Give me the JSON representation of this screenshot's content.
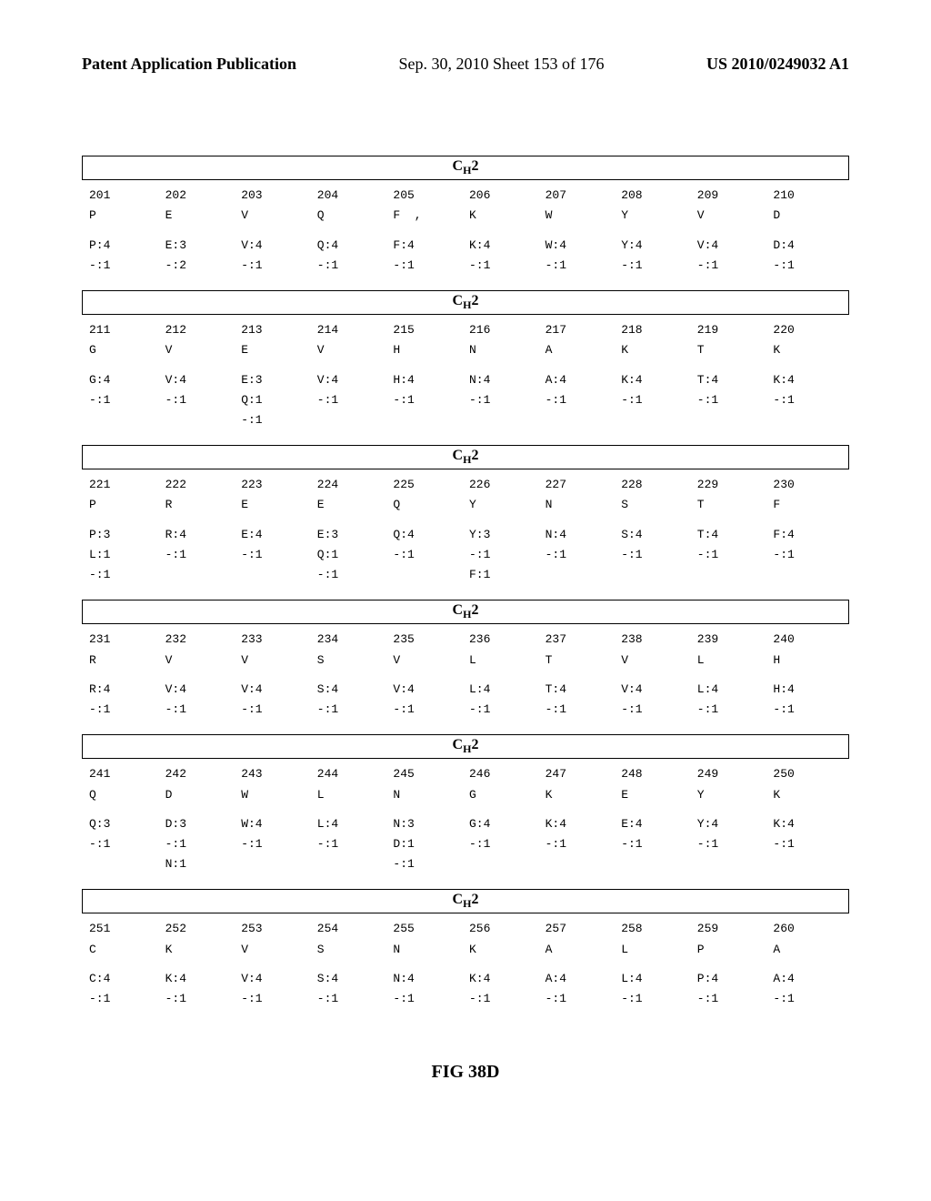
{
  "header": {
    "left": "Patent Application Publication",
    "center": "Sep. 30, 2010  Sheet 153 of 176",
    "right": "US 2010/0249032 A1"
  },
  "figure_label": "FIG 38D",
  "domain_title_html": "C",
  "domain_title_sub": "H",
  "domain_title_tail": "2",
  "blocks": [
    {
      "positions": [
        "201",
        "202",
        "203",
        "204",
        "205",
        "206",
        "207",
        "208",
        "209",
        "210"
      ],
      "residues": [
        "P",
        "E",
        "V",
        "Q",
        "F  ,",
        "K",
        "W",
        "Y",
        "V",
        "D"
      ],
      "counts": [
        [
          "P:4",
          "E:3",
          "V:4",
          "Q:4",
          "F:4",
          "K:4",
          "W:4",
          "Y:4",
          "V:4",
          "D:4"
        ],
        [
          "-:1",
          "-:2",
          "-:1",
          "-:1",
          "-:1",
          "-:1",
          "-:1",
          "-:1",
          "-:1",
          "-:1"
        ]
      ]
    },
    {
      "positions": [
        "211",
        "212",
        "213",
        "214",
        "215",
        "216",
        "217",
        "218",
        "219",
        "220"
      ],
      "residues": [
        "G",
        "V",
        "E",
        "V",
        "H",
        "N",
        "A",
        "K",
        "T",
        "K"
      ],
      "counts": [
        [
          "G:4",
          "V:4",
          "E:3",
          "V:4",
          "H:4",
          "N:4",
          "A:4",
          "K:4",
          "T:4",
          "K:4"
        ],
        [
          "-:1",
          "-:1",
          "Q:1",
          "-:1",
          "-:1",
          "-:1",
          "-:1",
          "-:1",
          "-:1",
          "-:1"
        ],
        [
          "",
          "",
          "-:1",
          "",
          "",
          "",
          "",
          "",
          "",
          ""
        ]
      ]
    },
    {
      "positions": [
        "221",
        "222",
        "223",
        "224",
        "225",
        "226",
        "227",
        "228",
        "229",
        "230"
      ],
      "residues": [
        "P",
        "R",
        "E",
        "E",
        "Q",
        "Y",
        "N",
        "S",
        "T",
        "F"
      ],
      "counts": [
        [
          "P:3",
          "R:4",
          "E:4",
          "E:3",
          "Q:4",
          "Y:3",
          "N:4",
          "S:4",
          "T:4",
          "F:4"
        ],
        [
          "L:1",
          "-:1",
          "-:1",
          "Q:1",
          "-:1",
          "-:1",
          "-:1",
          "-:1",
          "-:1",
          "-:1"
        ],
        [
          "-:1",
          "",
          "",
          "-:1",
          "",
          "F:1",
          "",
          "",
          "",
          ""
        ]
      ]
    },
    {
      "positions": [
        "231",
        "232",
        "233",
        "234",
        "235",
        "236",
        "237",
        "238",
        "239",
        "240"
      ],
      "residues": [
        "R",
        "V",
        "V",
        "S",
        "V",
        "L",
        "T",
        "V",
        "L",
        "H"
      ],
      "counts": [
        [
          "R:4",
          "V:4",
          "V:4",
          "S:4",
          "V:4",
          "L:4",
          "T:4",
          "V:4",
          "L:4",
          "H:4"
        ],
        [
          "-:1",
          "-:1",
          "-:1",
          "-:1",
          "-:1",
          "-:1",
          "-:1",
          "-:1",
          "-:1",
          "-:1"
        ]
      ]
    },
    {
      "positions": [
        "241",
        "242",
        "243",
        "244",
        "245",
        "246",
        "247",
        "248",
        "249",
        "250"
      ],
      "residues": [
        "Q",
        "D",
        "W",
        "L",
        "N",
        "G",
        "K",
        "E",
        "Y",
        "K"
      ],
      "counts": [
        [
          "Q:3",
          "D:3",
          "W:4",
          "L:4",
          "N:3",
          "G:4",
          "K:4",
          "E:4",
          "Y:4",
          "K:4"
        ],
        [
          "-:1",
          "-:1",
          "-:1",
          "-:1",
          "D:1",
          "-:1",
          "-:1",
          "-:1",
          "-:1",
          "-:1"
        ],
        [
          "",
          "N:1",
          "",
          "",
          "-:1",
          "",
          "",
          "",
          "",
          ""
        ]
      ]
    },
    {
      "positions": [
        "251",
        "252",
        "253",
        "254",
        "255",
        "256",
        "257",
        "258",
        "259",
        "260"
      ],
      "residues": [
        "C",
        "K",
        "V",
        "S",
        "N",
        "K",
        "A",
        "L",
        "P",
        "A"
      ],
      "counts": [
        [
          "C:4",
          "K:4",
          "V:4",
          "S:4",
          "N:4",
          "K:4",
          "A:4",
          "L:4",
          "P:4",
          "A:4"
        ],
        [
          "-:1",
          "-:1",
          "-:1",
          "-:1",
          "-:1",
          "-:1",
          "-:1",
          "-:1",
          "-:1",
          "-:1"
        ]
      ]
    }
  ]
}
